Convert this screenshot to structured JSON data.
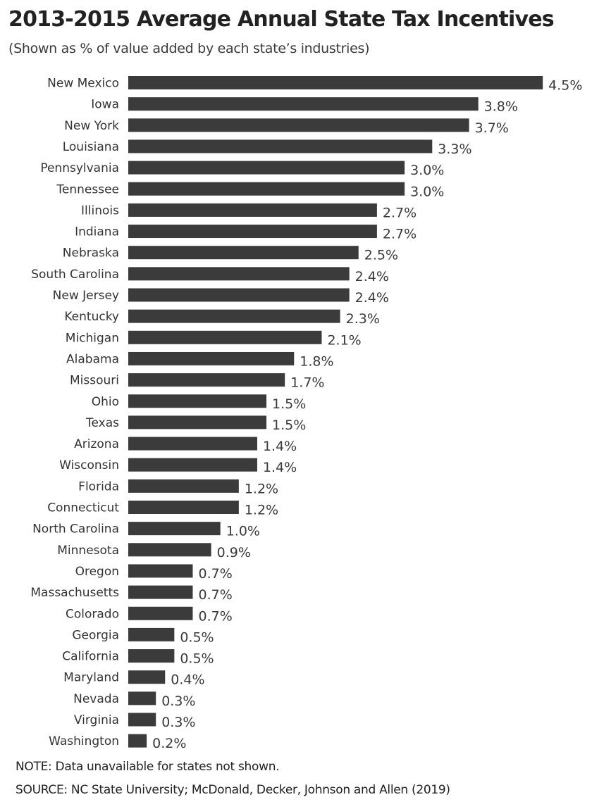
{
  "header": {
    "title": "2013-2015 Average Annual State Tax Incentives",
    "subtitle": "(Shown as % of value added by each state’s industries)"
  },
  "footer": {
    "note": "NOTE: Data unavailable for states not shown.",
    "source": "SOURCE: NC State University; McDonald, Decker, Johnson and Allen (2019)"
  },
  "colors": {
    "bar": "#3b3b3b"
  },
  "chart_data": {
    "type": "bar",
    "orientation": "horizontal",
    "title": "2013-2015 Average Annual State Tax Incentives",
    "subtitle": "(Shown as % of value added by each state’s industries)",
    "xlabel": "",
    "ylabel": "",
    "value_unit": "%",
    "xlim": [
      0,
      4.5
    ],
    "grid": false,
    "legend": "none",
    "categories": [
      "New Mexico",
      "Iowa",
      "New York",
      "Louisiana",
      "Pennsylvania",
      "Tennessee",
      "Illinois",
      "Indiana",
      "Nebraska",
      "South Carolina",
      "New Jersey",
      "Kentucky",
      "Michigan",
      "Alabama",
      "Missouri",
      "Ohio",
      "Texas",
      "Arizona",
      "Wisconsin",
      "Florida",
      "Connecticut",
      "North Carolina",
      "Minnesota",
      "Oregon",
      "Massachusetts",
      "Colorado",
      "Georgia",
      "California",
      "Maryland",
      "Nevada",
      "Virginia",
      "Washington"
    ],
    "values": [
      4.5,
      3.8,
      3.7,
      3.3,
      3.0,
      3.0,
      2.7,
      2.7,
      2.5,
      2.4,
      2.4,
      2.3,
      2.1,
      1.8,
      1.7,
      1.5,
      1.5,
      1.4,
      1.4,
      1.2,
      1.2,
      1.0,
      0.9,
      0.7,
      0.7,
      0.7,
      0.5,
      0.5,
      0.4,
      0.3,
      0.3,
      0.2
    ],
    "value_labels": [
      "4.5%",
      "3.8%",
      "3.7%",
      "3.3%",
      "3.0%",
      "3.0%",
      "2.7%",
      "2.7%",
      "2.5%",
      "2.4%",
      "2.4%",
      "2.3%",
      "2.1%",
      "1.8%",
      "1.7%",
      "1.5%",
      "1.5%",
      "1.4%",
      "1.4%",
      "1.2%",
      "1.2%",
      "1.0%",
      "0.9%",
      "0.7%",
      "0.7%",
      "0.7%",
      "0.5%",
      "0.5%",
      "0.4%",
      "0.3%",
      "0.3%",
      "0.2%"
    ]
  }
}
